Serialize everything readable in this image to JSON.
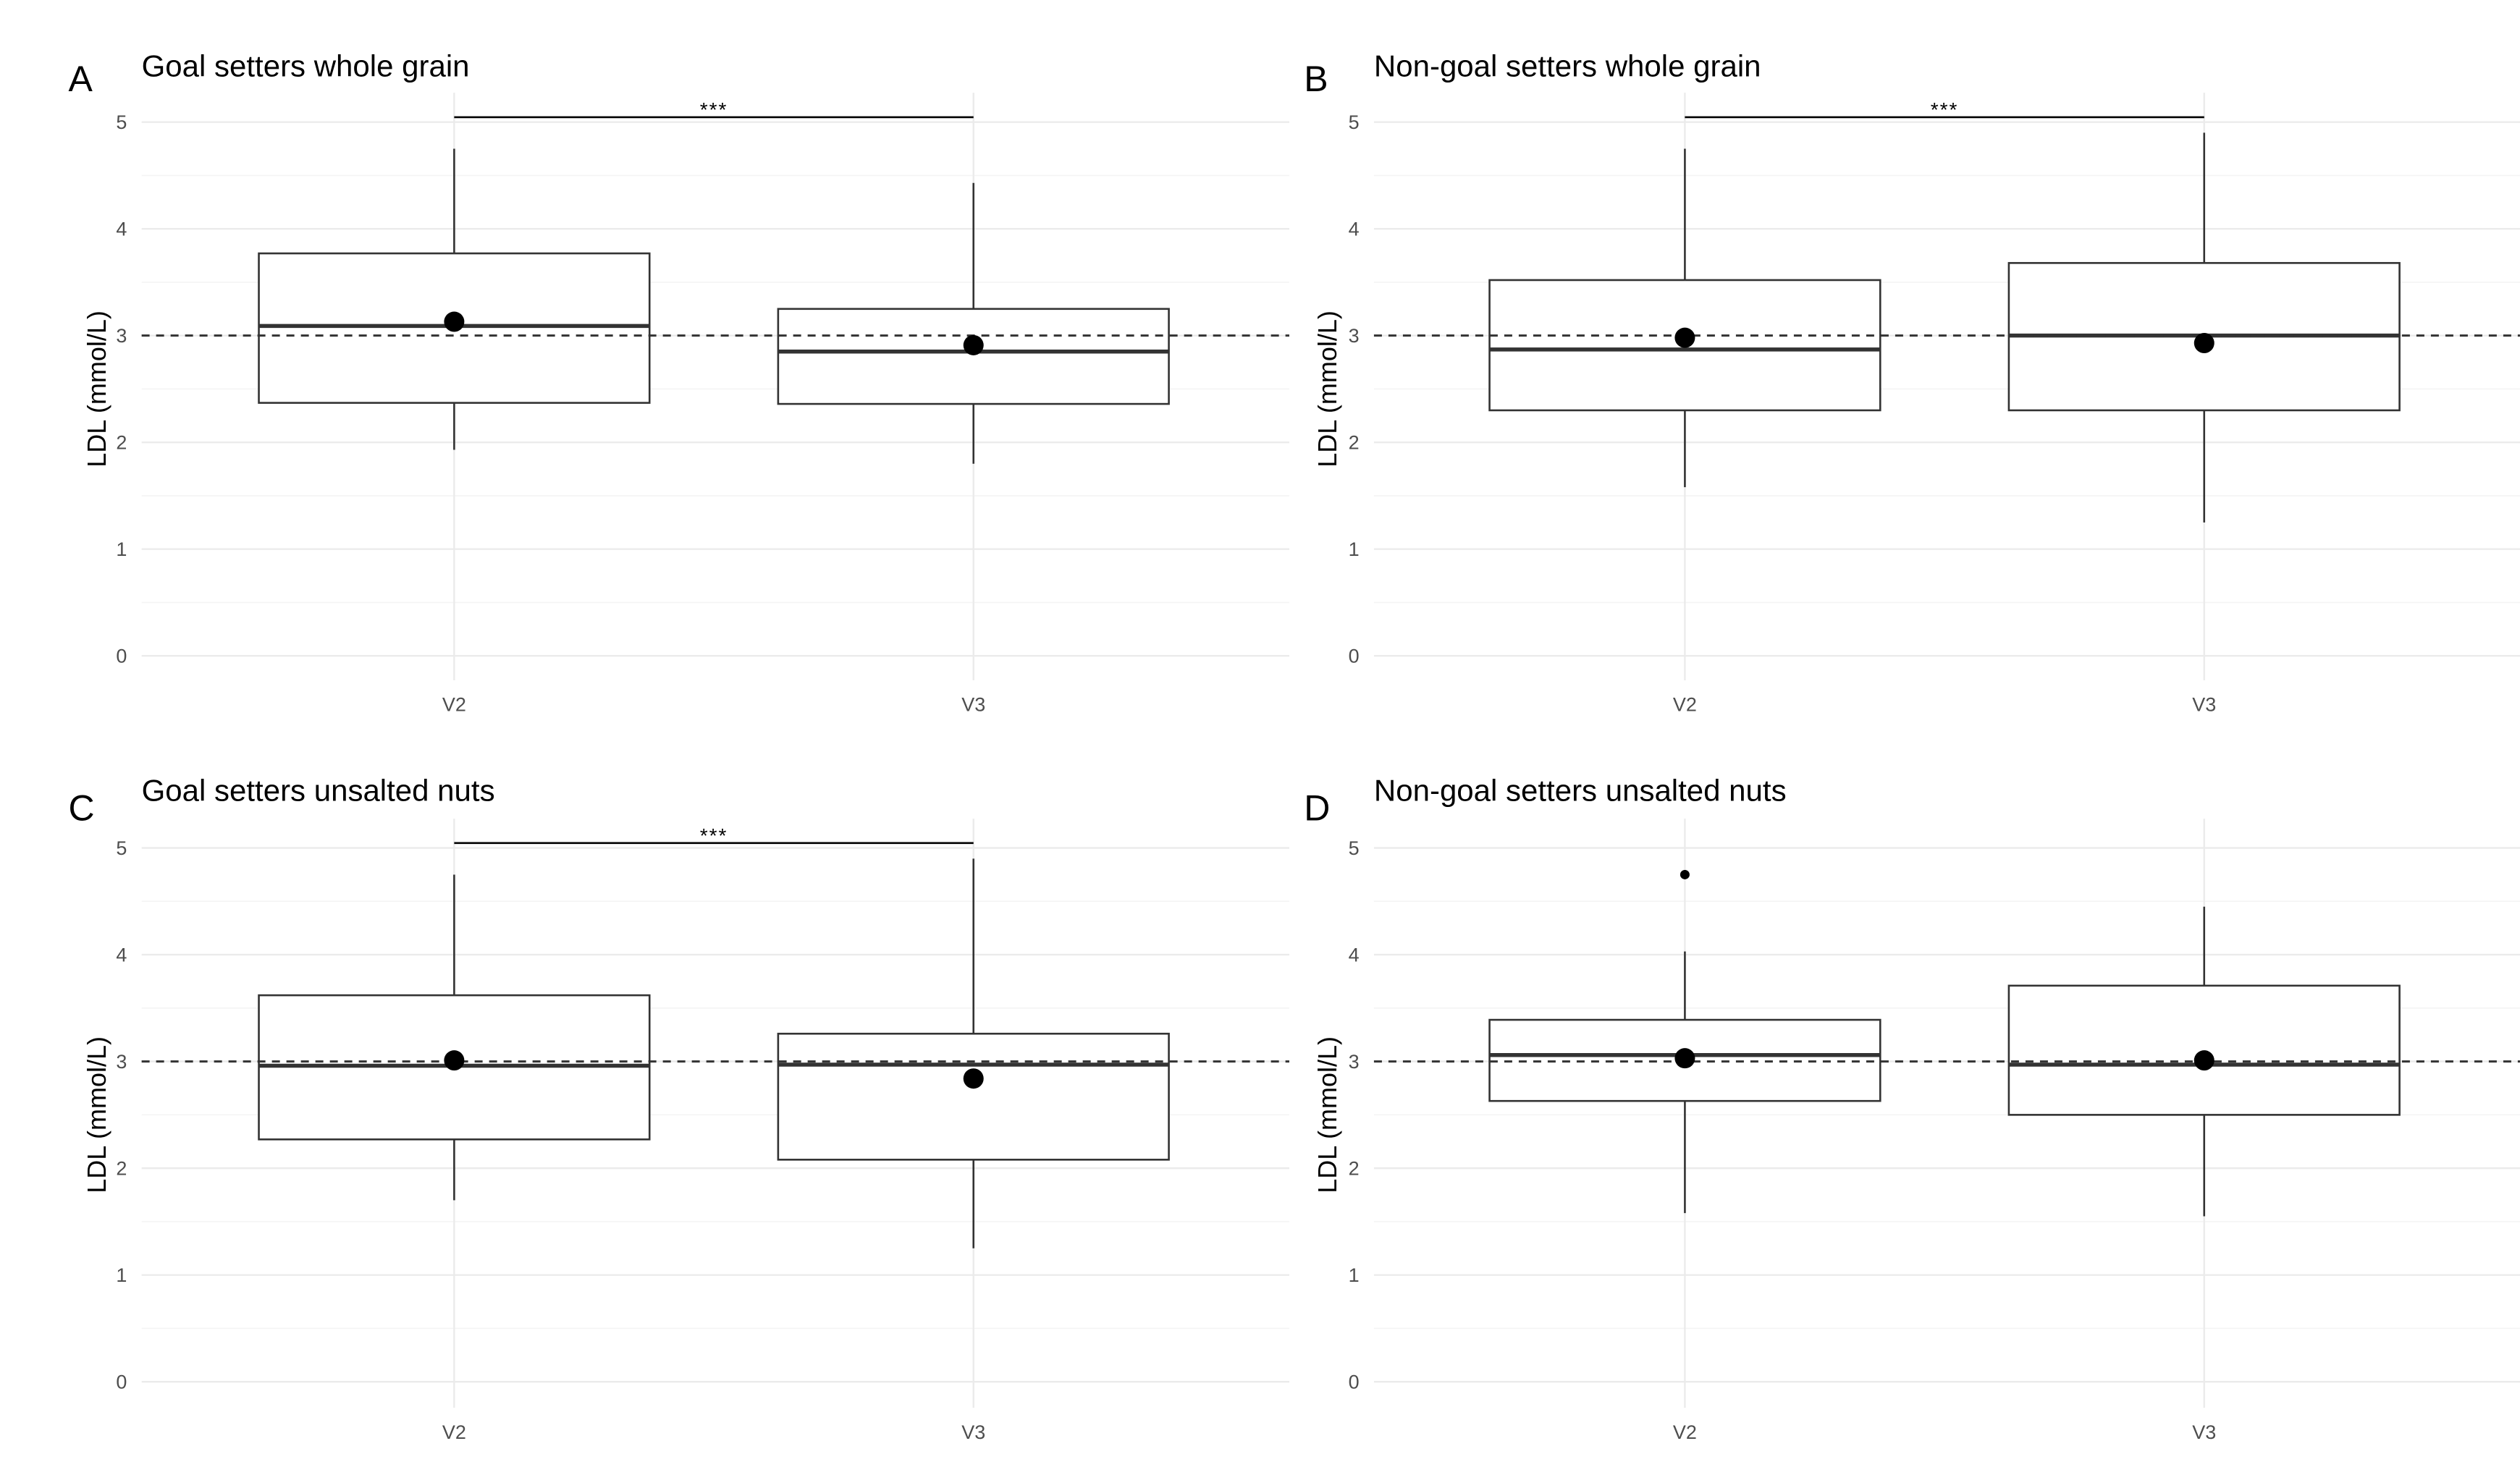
{
  "chart_data": [
    {
      "type": "box",
      "panel_label": "A",
      "title": "Goal setters whole grain",
      "xlabel": "",
      "ylabel": "LDL (mmol/L)",
      "ylim": [
        0,
        5
      ],
      "yticks": [
        0,
        1,
        2,
        3,
        4,
        5
      ],
      "grid": true,
      "reference_line": 3,
      "categories": [
        "V2",
        "V3"
      ],
      "boxes": [
        {
          "category": "V2",
          "lower_whisker": 1.93,
          "q1": 2.37,
          "median": 3.09,
          "q3": 3.77,
          "upper_whisker": 4.75,
          "mean": 3.13,
          "outliers": []
        },
        {
          "category": "V3",
          "lower_whisker": 1.8,
          "q1": 2.36,
          "median": 2.85,
          "q3": 3.25,
          "upper_whisker": 4.43,
          "mean": 2.91,
          "outliers": []
        }
      ],
      "significance": {
        "from": "V2",
        "to": "V3",
        "label": "***"
      }
    },
    {
      "type": "box",
      "panel_label": "B",
      "title": "Non-goal setters whole grain",
      "xlabel": "",
      "ylabel": "LDL (mmol/L)",
      "ylim": [
        0,
        5
      ],
      "yticks": [
        0,
        1,
        2,
        3,
        4,
        5
      ],
      "grid": true,
      "reference_line": 3,
      "categories": [
        "V2",
        "V3"
      ],
      "boxes": [
        {
          "category": "V2",
          "lower_whisker": 1.58,
          "q1": 2.3,
          "median": 2.87,
          "q3": 3.52,
          "upper_whisker": 4.75,
          "mean": 2.98,
          "outliers": []
        },
        {
          "category": "V3",
          "lower_whisker": 1.25,
          "q1": 2.3,
          "median": 3.0,
          "q3": 3.68,
          "upper_whisker": 4.9,
          "mean": 2.93,
          "outliers": []
        }
      ],
      "significance": {
        "from": "V2",
        "to": "V3",
        "label": "***"
      }
    },
    {
      "type": "box",
      "panel_label": "C",
      "title": "Goal setters unsalted nuts",
      "xlabel": "",
      "ylabel": "LDL (mmol/L)",
      "ylim": [
        0,
        5
      ],
      "yticks": [
        0,
        1,
        2,
        3,
        4,
        5
      ],
      "grid": true,
      "reference_line": 3,
      "categories": [
        "V2",
        "V3"
      ],
      "boxes": [
        {
          "category": "V2",
          "lower_whisker": 1.7,
          "q1": 2.27,
          "median": 2.96,
          "q3": 3.62,
          "upper_whisker": 4.75,
          "mean": 3.01,
          "outliers": []
        },
        {
          "category": "V3",
          "lower_whisker": 1.25,
          "q1": 2.08,
          "median": 2.97,
          "q3": 3.26,
          "upper_whisker": 4.9,
          "mean": 2.84,
          "outliers": []
        }
      ],
      "significance": {
        "from": "V2",
        "to": "V3",
        "label": "***"
      }
    },
    {
      "type": "box",
      "panel_label": "D",
      "title": "Non-goal setters unsalted nuts",
      "xlabel": "",
      "ylabel": "LDL (mmol/L)",
      "ylim": [
        0,
        5
      ],
      "yticks": [
        0,
        1,
        2,
        3,
        4,
        5
      ],
      "grid": true,
      "reference_line": 3,
      "categories": [
        "V2",
        "V3"
      ],
      "boxes": [
        {
          "category": "V2",
          "lower_whisker": 1.58,
          "q1": 2.63,
          "median": 3.06,
          "q3": 3.39,
          "upper_whisker": 4.03,
          "mean": 3.03,
          "outliers": [
            4.75
          ]
        },
        {
          "category": "V3",
          "lower_whisker": 1.55,
          "q1": 2.5,
          "median": 2.97,
          "q3": 3.71,
          "upper_whisker": 4.45,
          "mean": 3.01,
          "outliers": []
        }
      ],
      "significance": null
    }
  ]
}
